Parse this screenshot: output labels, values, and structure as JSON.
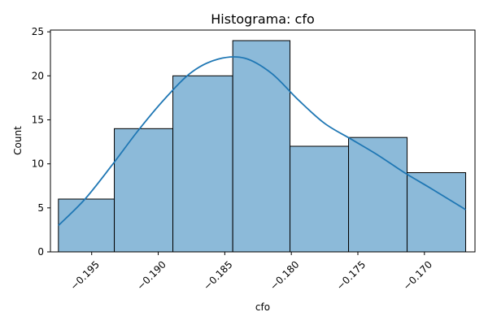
{
  "chart_data": {
    "type": "bar",
    "title": "Histograma: cfo",
    "xlabel": "cfo",
    "ylabel": "Count",
    "xlim": [
      -0.1981,
      -0.1662
    ],
    "ylim": [
      0,
      25.2
    ],
    "x_ticks": [
      -0.195,
      -0.19,
      -0.185,
      -0.18,
      -0.175,
      -0.17
    ],
    "x_tick_labels": [
      "−0.195",
      "−0.190",
      "−0.185",
      "−0.180",
      "−0.175",
      "−0.170"
    ],
    "y_ticks": [
      0,
      5,
      10,
      15,
      20,
      25
    ],
    "y_tick_labels": [
      "0",
      "5",
      "10",
      "15",
      "20",
      "25"
    ],
    "bin_edges": [
      -0.1975,
      -0.1933,
      -0.1889,
      -0.1844,
      -0.1801,
      -0.1757,
      -0.1713,
      -0.1669
    ],
    "values": [
      6,
      14,
      20,
      24,
      12,
      13,
      9
    ],
    "kde": {
      "x": [
        -0.1975,
        -0.1955,
        -0.1935,
        -0.1915,
        -0.1895,
        -0.1875,
        -0.1855,
        -0.1835,
        -0.1815,
        -0.1795,
        -0.1775,
        -0.1755,
        -0.1735,
        -0.1715,
        -0.1695,
        -0.1669
      ],
      "y": [
        3.0,
        6.0,
        9.8,
        13.8,
        17.4,
        20.4,
        21.9,
        22.0,
        20.3,
        17.3,
        14.6,
        12.8,
        11.0,
        9.0,
        7.2,
        4.8
      ]
    },
    "colors": {
      "bar_fill": "#8cbad9",
      "bar_edge": "#000000",
      "kde_line": "#1f77b4"
    },
    "grid": false,
    "legend": "none"
  }
}
